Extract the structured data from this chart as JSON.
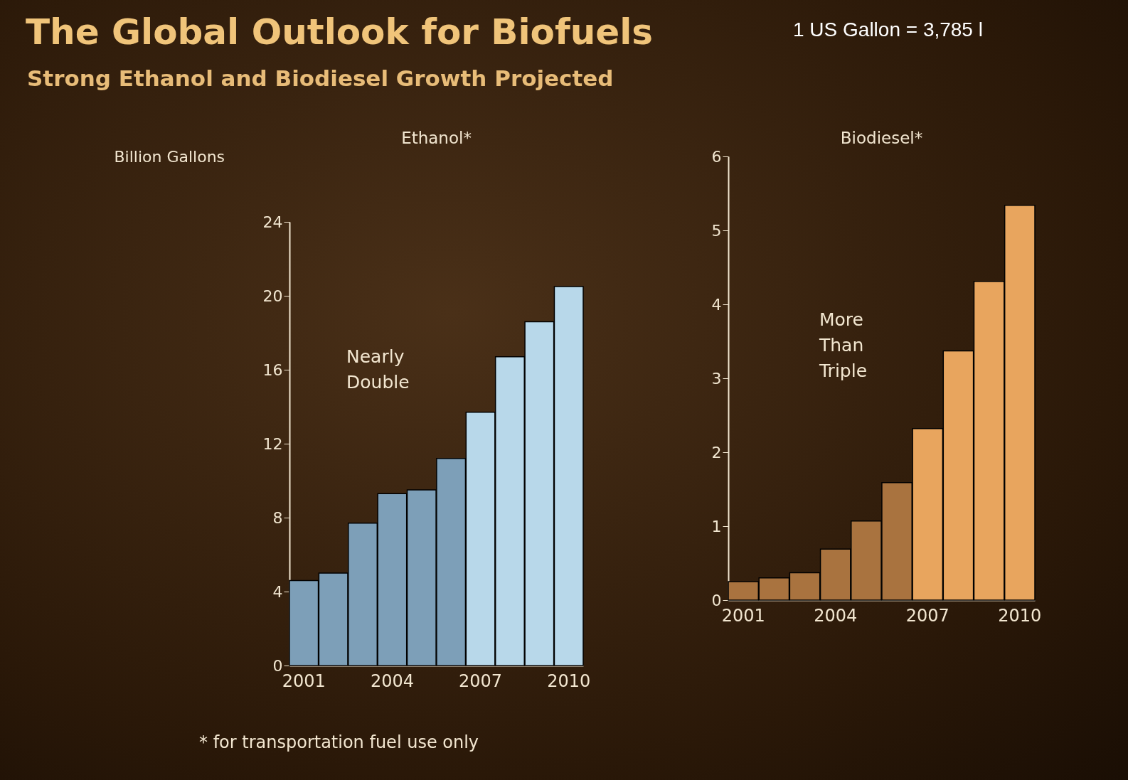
{
  "chart_data": [
    {
      "type": "other",
      "title": "The Global Outlook for Biofuels",
      "subtitle": "Strong Ethanol and Biodiesel Growth Projected",
      "annotations": [
        "1 US Gallon = 3,785 l",
        "* for transportation fuel use only"
      ]
    },
    {
      "type": "bar",
      "title": "Ethanol*",
      "ylabel": "Billion Gallons",
      "categories": [
        "2001",
        null,
        null,
        "2004",
        null,
        null,
        "2007",
        null,
        null,
        "2010"
      ],
      "values": [
        4.6,
        5.0,
        7.7,
        9.3,
        9.5,
        11.2,
        13.7,
        16.7,
        18.6,
        20.5
      ],
      "colors": [
        "#7d9fb8",
        "#7d9fb8",
        "#7d9fb8",
        "#7d9fb8",
        "#7d9fb8",
        "#7d9fb8",
        "#b8d8ea",
        "#b8d8ea",
        "#b8d8ea",
        "#b8d8ea"
      ],
      "ylim": [
        0,
        24
      ],
      "yticks": [
        0,
        4,
        8,
        12,
        16,
        20,
        24
      ],
      "grid": false,
      "annotations": [
        "Nearly Double"
      ]
    },
    {
      "type": "bar",
      "title": "Biodiesel*",
      "categories": [
        "2001",
        null,
        null,
        "2004",
        null,
        null,
        "2007",
        null,
        null,
        "2010"
      ],
      "values": [
        0.25,
        0.3,
        0.37,
        0.69,
        1.07,
        1.59,
        2.32,
        3.37,
        4.31,
        5.34
      ],
      "colors": [
        "#a9733f",
        "#a9733f",
        "#a9733f",
        "#a9733f",
        "#a9733f",
        "#a9733f",
        "#e8a55e",
        "#e8a55e",
        "#e8a55e",
        "#e8a55e"
      ],
      "ylim": [
        0,
        6
      ],
      "yticks": [
        0,
        1,
        2,
        3,
        4,
        5,
        6
      ],
      "grid": false,
      "annotations": [
        "More Than Triple"
      ]
    }
  ]
}
